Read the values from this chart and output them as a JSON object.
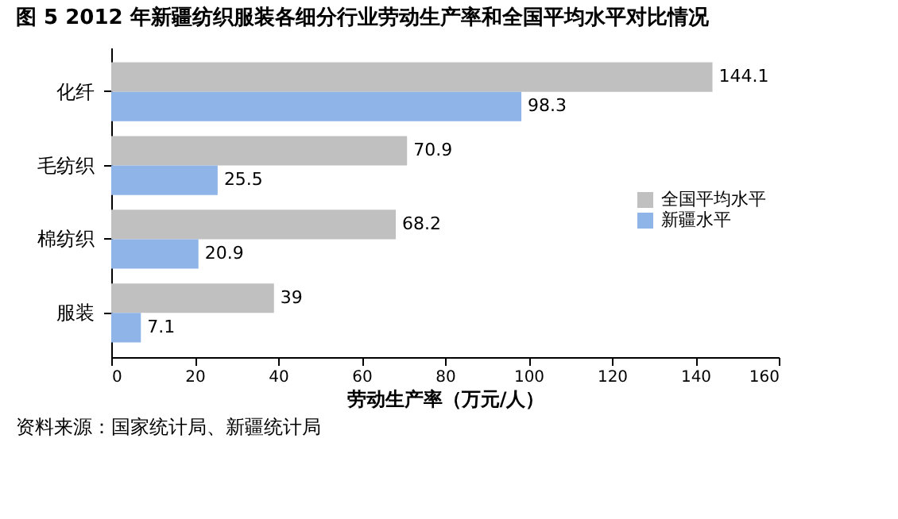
{
  "chart_data": {
    "type": "bar",
    "orientation": "horizontal",
    "title": "图 5 2012 年新疆纺织服装各细分行业劳动生产率和全国平均水平对比情况",
    "categories": [
      "化纤",
      "毛纺织",
      "棉纺织",
      "服装"
    ],
    "series": [
      {
        "name": "全国平均水平",
        "color": "#c0c0c0",
        "values": [
          144.1,
          70.9,
          68.2,
          39
        ]
      },
      {
        "name": "新疆水平",
        "color": "#8fb4e8",
        "values": [
          98.3,
          25.5,
          20.9,
          7.1
        ]
      }
    ],
    "xlabel": "劳动生产率（万元/人）",
    "xlim": [
      0,
      160
    ],
    "xticks": [
      0,
      20,
      40,
      60,
      80,
      100,
      120,
      140,
      160
    ],
    "data_labels": true,
    "grid": false,
    "legend": "right",
    "annotations": [
      "资料来源：国家统计局、新疆统计局"
    ]
  }
}
